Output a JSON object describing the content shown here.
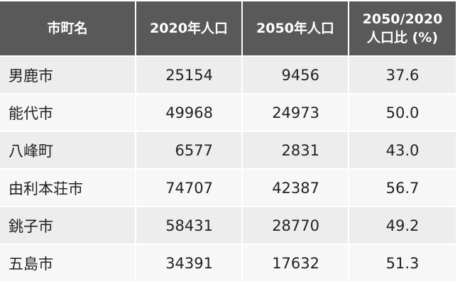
{
  "table": {
    "headers": [
      "市町名",
      "2020年人口",
      "2050年人口",
      "2050/2020\n人口比 (%)"
    ],
    "rows": [
      [
        "男鹿市",
        "25154",
        "9456",
        "37.6"
      ],
      [
        "能代市",
        "49968",
        "24973",
        "50.0"
      ],
      [
        "八峰町",
        "6577",
        "2831",
        "43.0"
      ],
      [
        "由利本荘市",
        "74707",
        "42387",
        "56.7"
      ],
      [
        "銚子市",
        "58431",
        "28770",
        "49.2"
      ],
      [
        "五島市",
        "34391",
        "17632",
        "51.3"
      ]
    ]
  }
}
